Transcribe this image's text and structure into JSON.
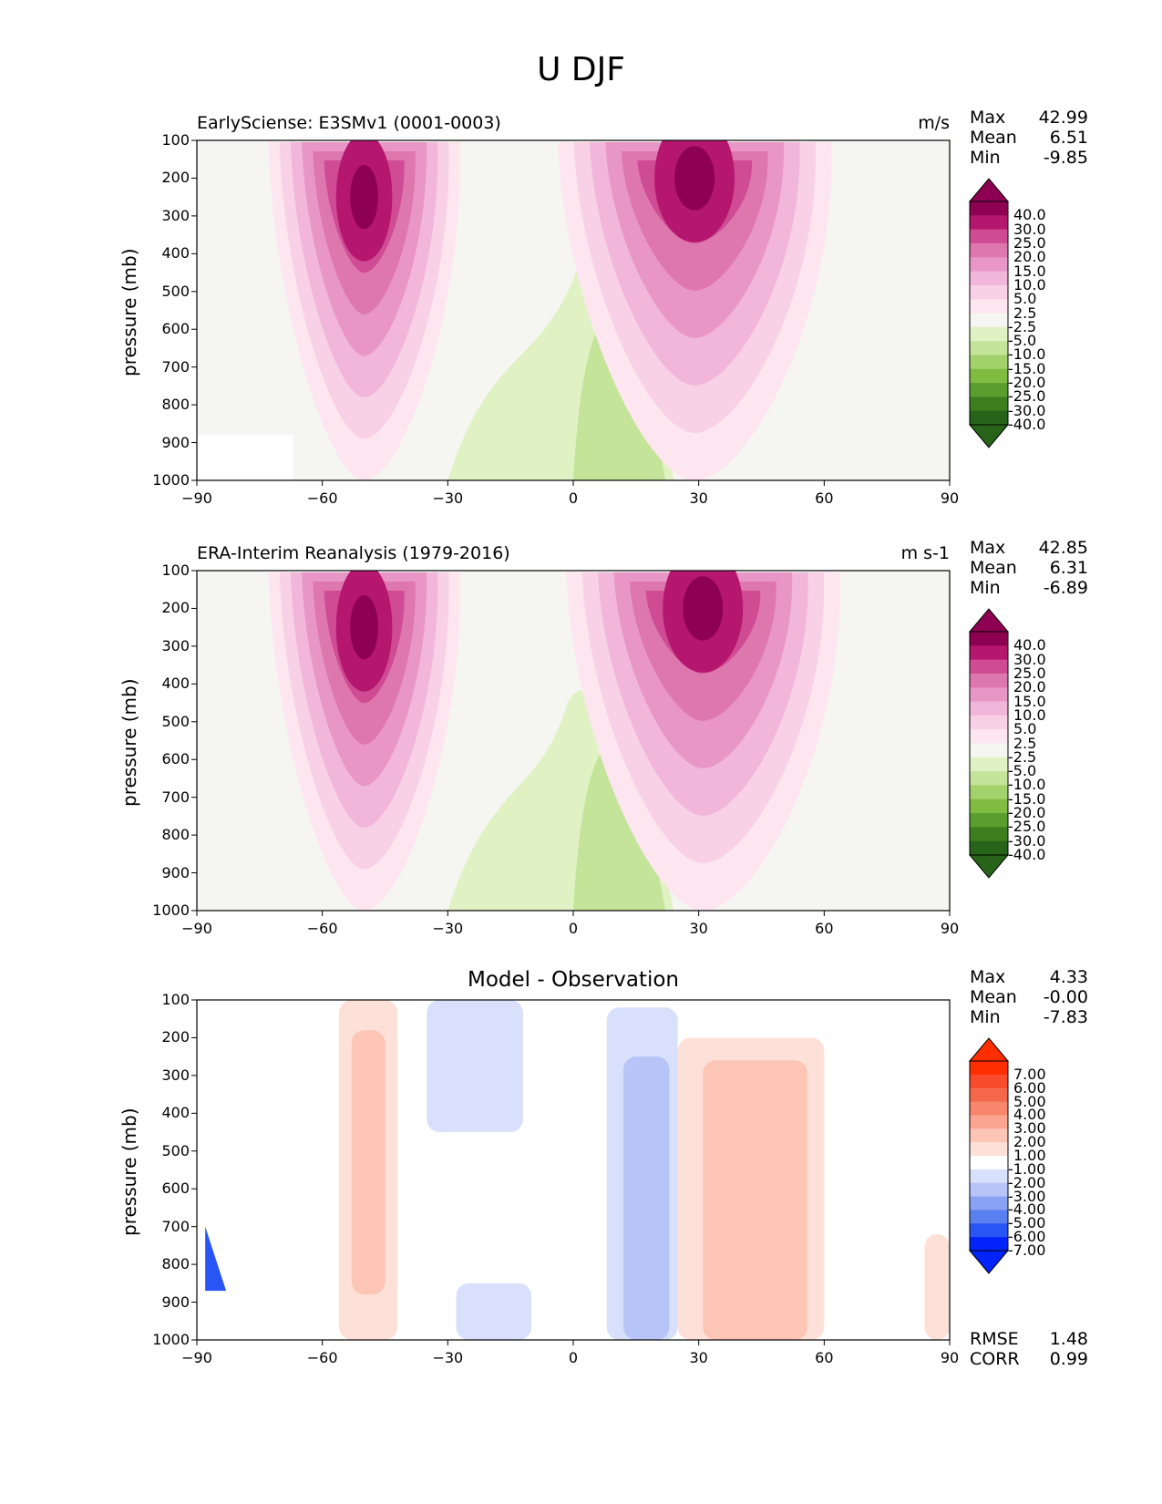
{
  "title": "U DJF",
  "chart_data": [
    {
      "type": "heatmap",
      "title": "EarlySciense: E3SMv1 (0001-0003)",
      "units": "m/s",
      "ylabel": "pressure (mb)",
      "xlabel": "",
      "xlim": [
        -90,
        90
      ],
      "ylim": [
        1000,
        100
      ],
      "x_ticks": [
        "−90",
        "−60",
        "−30",
        "0",
        "30",
        "60",
        "90"
      ],
      "y_ticks": [
        "100",
        "200",
        "300",
        "400",
        "500",
        "600",
        "700",
        "800",
        "900",
        "1000"
      ],
      "stats": {
        "Max": "42.99",
        "Mean": "6.51",
        "Min": "-9.85"
      },
      "colorbar": [
        "40.0",
        "30.0",
        "25.0",
        "20.0",
        "15.0",
        "10.0",
        "5.0",
        "2.5",
        "-2.5",
        "-5.0",
        "-10.0",
        "-15.0",
        "-20.0",
        "-25.0",
        "-30.0",
        "-40.0"
      ],
      "jets": [
        {
          "lat": -50,
          "pressure": 250,
          "peak": 35
        },
        {
          "lat": 29,
          "pressure": 200,
          "peak": 43
        }
      ]
    },
    {
      "type": "heatmap",
      "title": "ERA-Interim Reanalysis (1979-2016)",
      "units": "m s-1",
      "ylabel": "pressure (mb)",
      "xlabel": "",
      "xlim": [
        -90,
        90
      ],
      "ylim": [
        1000,
        100
      ],
      "x_ticks": [
        "−90",
        "−60",
        "−30",
        "0",
        "30",
        "60",
        "90"
      ],
      "y_ticks": [
        "100",
        "200",
        "300",
        "400",
        "500",
        "600",
        "700",
        "800",
        "900",
        "1000"
      ],
      "stats": {
        "Max": "42.85",
        "Mean": "6.31",
        "Min": "-6.89"
      },
      "colorbar": [
        "40.0",
        "30.0",
        "25.0",
        "20.0",
        "15.0",
        "10.0",
        "5.0",
        "2.5",
        "-2.5",
        "-5.0",
        "-10.0",
        "-15.0",
        "-20.0",
        "-25.0",
        "-30.0",
        "-40.0"
      ],
      "jets": [
        {
          "lat": -50,
          "pressure": 250,
          "peak": 35
        },
        {
          "lat": 31,
          "pressure": 200,
          "peak": 43
        }
      ]
    },
    {
      "type": "heatmap",
      "title": "Model - Observation",
      "units": "",
      "ylabel": "pressure (mb)",
      "xlabel": "",
      "xlim": [
        -90,
        90
      ],
      "ylim": [
        1000,
        100
      ],
      "x_ticks": [
        "−90",
        "−60",
        "−30",
        "0",
        "30",
        "60",
        "90"
      ],
      "y_ticks": [
        "100",
        "200",
        "300",
        "400",
        "500",
        "600",
        "700",
        "800",
        "900",
        "1000"
      ],
      "stats": {
        "Max": "4.33",
        "Mean": "-0.00",
        "Min": "-7.83"
      },
      "colorbar": [
        "7.00",
        "6.00",
        "5.00",
        "4.00",
        "3.00",
        "2.00",
        "1.00",
        "-1.00",
        "-2.00",
        "-3.00",
        "-4.00",
        "-5.00",
        "-6.00",
        "-7.00"
      ],
      "metrics": {
        "RMSE": "1.48",
        "CORR": "0.99"
      }
    }
  ],
  "colors": {
    "field": [
      "#276419",
      "#3d7f1e",
      "#5a9e30",
      "#7fbc41",
      "#a3d16c",
      "#c4e49a",
      "#e0f2c4",
      "#f5f5f2",
      "#fde6f0",
      "#f8d1e6",
      "#f1b6da",
      "#e896c6",
      "#de77ae",
      "#cf4b93",
      "#b5176e",
      "#8e0152"
    ],
    "diff": [
      "#0323fb",
      "#2a55f5",
      "#5a7ff0",
      "#8aa2f3",
      "#b7c4f8",
      "#d8e0fb",
      "#ffffff",
      "#fde1d8",
      "#fcc5b6",
      "#faa58f",
      "#f8866c",
      "#f5674b",
      "#f94a2b",
      "#ff2e00"
    ]
  }
}
